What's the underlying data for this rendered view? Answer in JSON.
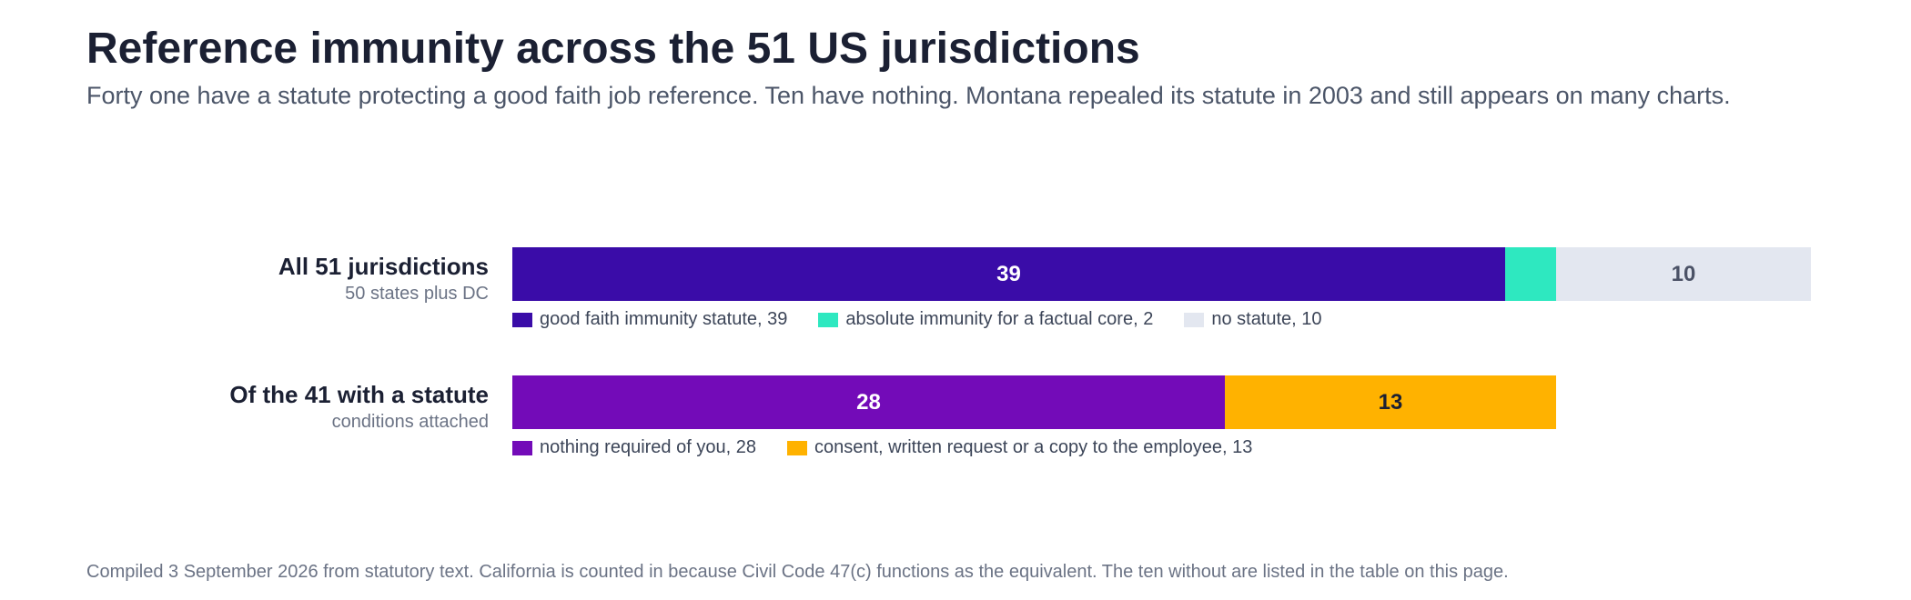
{
  "header": {
    "title": "Reference immunity across the 51 US jurisdictions",
    "subtitle": "Forty one have a statute protecting a good faith job reference. Ten have nothing. Montana repealed its statute in 2003 and still appears on many charts."
  },
  "footnote": "Compiled 3 September 2026 from statutory text. California is counted in because Civil Code 47(c) functions as the equivalent. The ten without are listed in the table on this page.",
  "chart_data": {
    "type": "bar",
    "orientation": "horizontal",
    "stacked": true,
    "scale_max": 51,
    "grid": false,
    "rows": [
      {
        "label": "All 51 jurisdictions",
        "sublabel": "50 states plus DC",
        "segments": [
          {
            "name": "good faith immunity statute",
            "value": 39,
            "color": "#3a0ca8",
            "text_color": "#ffffff",
            "bar_label": "39",
            "legend": "good faith immunity statute, 39"
          },
          {
            "name": "absolute immunity for a factual core",
            "value": 2,
            "color": "#2ee8c0",
            "text_color": "#1b2033",
            "bar_label": "",
            "legend": "absolute immunity for a factual core, 2"
          },
          {
            "name": "no statute",
            "value": 10,
            "color": "#e3e7f0",
            "text_color": "#4b5266",
            "bar_label": "10",
            "legend": "no statute, 10"
          }
        ]
      },
      {
        "label": "Of the 41 with a statute",
        "sublabel": "conditions attached",
        "segments": [
          {
            "name": "nothing required of you",
            "value": 28,
            "color": "#730bb8",
            "text_color": "#ffffff",
            "bar_label": "28",
            "legend": "nothing required of you, 28"
          },
          {
            "name": "consent, written request or a copy to the employee",
            "value": 13,
            "color": "#ffb200",
            "text_color": "#1b2033",
            "bar_label": "13",
            "legend": "consent, written request or a copy to the employee, 13"
          }
        ]
      }
    ]
  }
}
